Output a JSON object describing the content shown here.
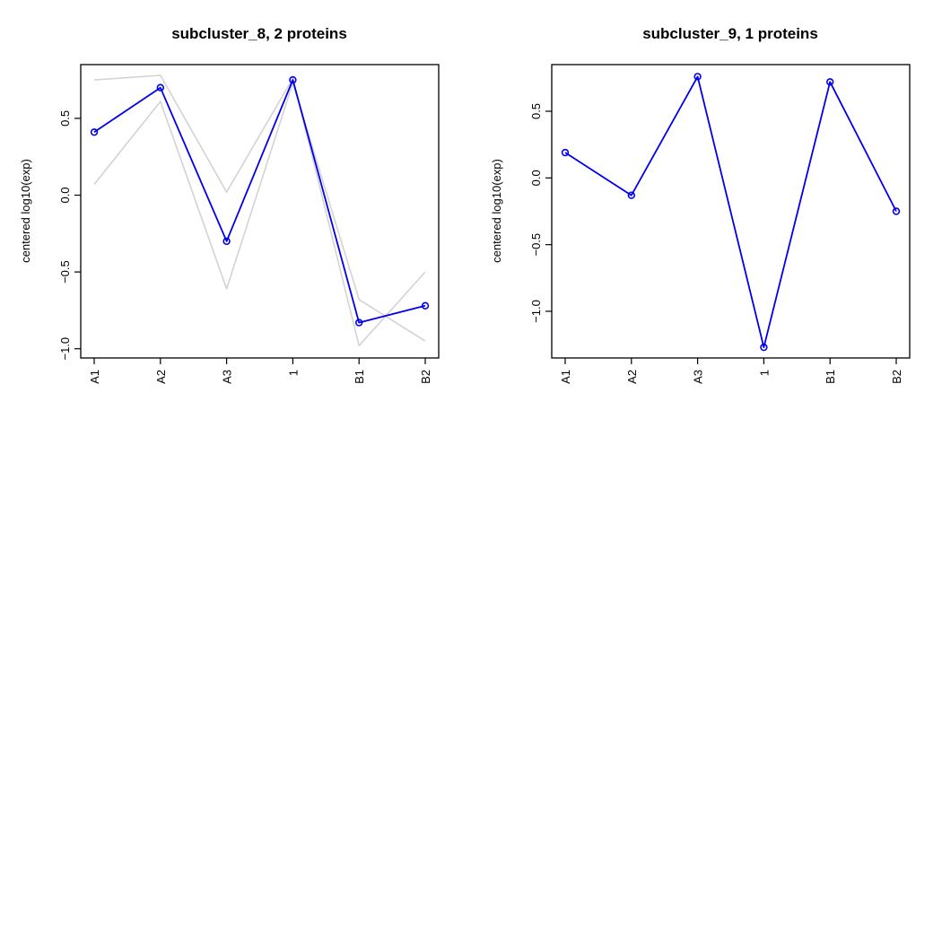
{
  "colors": {
    "mean_line": "#0000EE",
    "member_line": "#D3D3D3",
    "axis": "#000000",
    "background": "#FFFFFF"
  },
  "chart_data": [
    {
      "type": "line",
      "title": "subcluster_8, 2 proteins",
      "xlabel": "",
      "ylabel": "centered log10(exp)",
      "categories": [
        "A1",
        "A2",
        "A3",
        "1",
        "B1",
        "B2"
      ],
      "ylim": [
        -1.06,
        0.85
      ],
      "yticks": [
        -1.0,
        -0.5,
        0.0,
        0.5
      ],
      "ytick_labels": [
        "−1.0",
        "−0.5",
        "0.0",
        "0.5"
      ],
      "grid": false,
      "legend": "none",
      "series": [
        {
          "role": "member",
          "values": [
            0.75,
            0.78,
            0.02,
            0.76,
            -0.98,
            -0.5
          ]
        },
        {
          "role": "member",
          "values": [
            0.07,
            0.61,
            -0.61,
            0.73,
            -0.68,
            -0.95
          ]
        },
        {
          "role": "mean",
          "values": [
            0.41,
            0.7,
            -0.3,
            0.75,
            -0.83,
            -0.72
          ]
        }
      ]
    },
    {
      "type": "line",
      "title": "subcluster_9, 1 proteins",
      "xlabel": "",
      "ylabel": "centered log10(exp)",
      "categories": [
        "A1",
        "A2",
        "A3",
        "1",
        "B1",
        "B2"
      ],
      "ylim": [
        -1.35,
        0.85
      ],
      "yticks": [
        -1.0,
        -0.5,
        0.0,
        0.5
      ],
      "ytick_labels": [
        "−1.0",
        "−0.5",
        "0.0",
        "0.5"
      ],
      "grid": false,
      "legend": "none",
      "series": [
        {
          "role": "mean",
          "values": [
            0.19,
            -0.13,
            0.76,
            -1.27,
            0.72,
            -0.25
          ]
        }
      ]
    }
  ]
}
